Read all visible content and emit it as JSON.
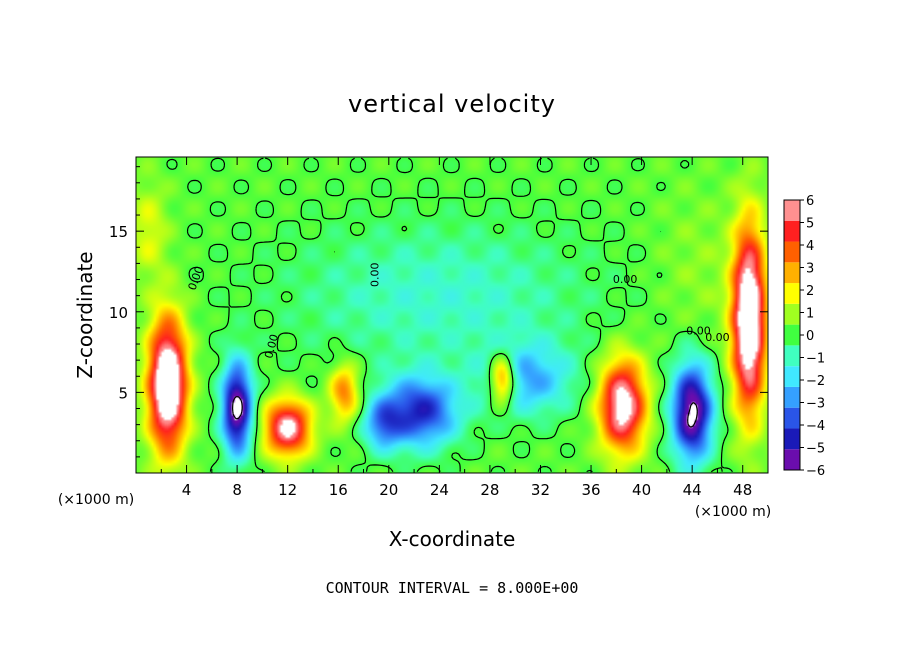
{
  "chart_data": {
    "type": "heatmap",
    "title": "vertical velocity",
    "xlabel": "X-coordinate",
    "ylabel": "Z-coordinate",
    "x_unit_label": "(×1000 m)",
    "y_unit_label": "(×1000 m)",
    "footer": "CONTOUR INTERVAL = 8.000E+00",
    "xlim": [
      0,
      50
    ],
    "ylim": [
      0,
      19.6
    ],
    "x_ticks": [
      4,
      8,
      12,
      16,
      20,
      24,
      28,
      32,
      36,
      40,
      44,
      48
    ],
    "y_ticks": [
      5,
      10,
      15
    ],
    "colorbar": {
      "ticks": [
        6,
        5,
        4,
        3,
        2,
        1,
        0,
        -1,
        -2,
        -3,
        -4,
        -5,
        -6
      ],
      "range": [
        -6,
        6
      ],
      "colors": [
        "#6a0dad",
        "#1a1ab8",
        "#2a55e8",
        "#35a0ff",
        "#40e8ff",
        "#40ffc0",
        "#40ff40",
        "#a0ff20",
        "#ffff00",
        "#ffb000",
        "#ff6000",
        "#ff2020",
        "#ff9090"
      ]
    },
    "contour_labels": [
      "0.00",
      "0.00",
      "0.00",
      "0.00",
      "0.00",
      "0.00"
    ],
    "features": [
      {
        "x": 2.5,
        "z": 5.5,
        "sx": 1.5,
        "sz": 4.0,
        "w": 8.5
      },
      {
        "x": 12.0,
        "z": 2.8,
        "sx": 1.8,
        "sz": 1.7,
        "w": 6.5
      },
      {
        "x": 16.5,
        "z": 5.0,
        "sx": 1.2,
        "sz": 1.8,
        "w": 3.5
      },
      {
        "x": 29.0,
        "z": 5.8,
        "sx": 1.0,
        "sz": 1.5,
        "w": 5.0
      },
      {
        "x": 38.5,
        "z": 4.2,
        "sx": 1.8,
        "sz": 2.8,
        "w": 7.0
      },
      {
        "x": 48.5,
        "z": 9.5,
        "sx": 1.3,
        "sz": 5.5,
        "w": 8.5
      },
      {
        "x": 8.0,
        "z": 4.0,
        "sx": 1.2,
        "sz": 2.8,
        "w": -7.0
      },
      {
        "x": 22.5,
        "z": 3.8,
        "sx": 3.0,
        "sz": 2.2,
        "w": -5.0
      },
      {
        "x": 19.5,
        "z": 3.0,
        "sx": 1.5,
        "sz": 1.6,
        "w": -3.0
      },
      {
        "x": 44.0,
        "z": 3.8,
        "sx": 1.6,
        "sz": 3.0,
        "w": -7.0
      },
      {
        "x": 31.0,
        "z": 5.8,
        "sx": 3.5,
        "sz": 2.2,
        "w": -3.0
      },
      {
        "x": 24.0,
        "z": 11.0,
        "sx": 12.0,
        "sz": 4.5,
        "w": -1.5
      },
      {
        "x": 44.5,
        "z": 12.5,
        "sx": 3.5,
        "sz": 5.0,
        "w": 0.6
      },
      {
        "x": 1.0,
        "z": 15.0,
        "sx": 1.5,
        "sz": 3.0,
        "w": 1.5
      }
    ]
  }
}
